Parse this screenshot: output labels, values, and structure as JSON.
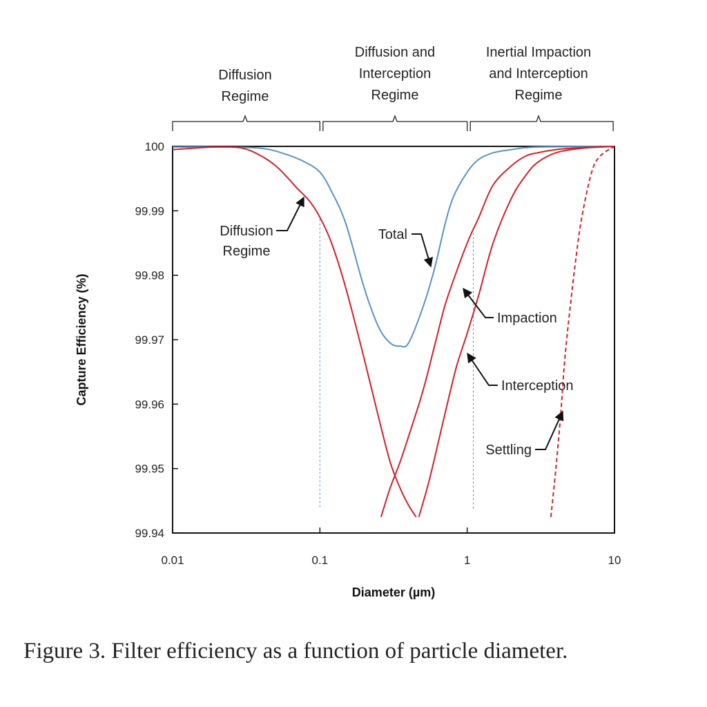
{
  "chart_data": {
    "type": "line",
    "x_scale": "log",
    "xlim": [
      0.01,
      10
    ],
    "ylim": [
      99.94,
      100
    ],
    "xlabel": "Diameter (µm)",
    "ylabel": "Capture Efficiency (%)",
    "x_ticks": [
      "0.01",
      "0.1",
      "1",
      "10"
    ],
    "y_ticks": [
      "99.94",
      "99.95",
      "99.96",
      "99.97",
      "99.98",
      "99.99",
      "100"
    ],
    "grid": false,
    "legend": "none",
    "series": [
      {
        "key": "total",
        "color": "#5b8fc7",
        "style": "solid",
        "points": [
          [
            0.01,
            99.9999
          ],
          [
            0.02,
            99.9999
          ],
          [
            0.04,
            99.9997
          ],
          [
            0.06,
            99.9987
          ],
          [
            0.08,
            99.9975
          ],
          [
            0.1,
            99.996
          ],
          [
            0.12,
            99.993
          ],
          [
            0.15,
            99.988
          ],
          [
            0.2,
            99.978
          ],
          [
            0.25,
            99.972
          ],
          [
            0.3,
            99.9695
          ],
          [
            0.35,
            99.969
          ],
          [
            0.4,
            99.9695
          ],
          [
            0.5,
            99.975
          ],
          [
            0.6,
            99.981
          ],
          [
            0.7,
            99.9875
          ],
          [
            0.8,
            99.992
          ],
          [
            1.0,
            99.996
          ],
          [
            1.2,
            99.998
          ],
          [
            1.5,
            99.999
          ],
          [
            2.0,
            99.9995
          ],
          [
            3.0,
            99.9999
          ],
          [
            10,
            100.0
          ]
        ]
      },
      {
        "key": "diffusion",
        "color": "#d0202a",
        "style": "solid",
        "points": [
          [
            0.01,
            99.9995
          ],
          [
            0.02,
            99.9999
          ],
          [
            0.03,
            99.9997
          ],
          [
            0.04,
            99.9985
          ],
          [
            0.05,
            99.997
          ],
          [
            0.06,
            99.9952
          ],
          [
            0.07,
            99.9935
          ],
          [
            0.085,
            99.9915
          ],
          [
            0.1,
            99.989
          ],
          [
            0.12,
            99.985
          ],
          [
            0.15,
            99.978
          ],
          [
            0.2,
            99.967
          ],
          [
            0.25,
            99.958
          ],
          [
            0.3,
            99.951
          ],
          [
            0.35,
            99.947
          ],
          [
            0.4,
            99.9443
          ],
          [
            0.45,
            99.9425
          ]
        ]
      },
      {
        "key": "impaction",
        "color": "#d0202a",
        "style": "solid",
        "points": [
          [
            0.26,
            99.9425
          ],
          [
            0.3,
            99.947
          ],
          [
            0.35,
            99.951
          ],
          [
            0.4,
            99.955
          ],
          [
            0.5,
            99.962
          ],
          [
            0.6,
            99.969
          ],
          [
            0.7,
            99.975
          ],
          [
            0.8,
            99.979
          ],
          [
            1.0,
            99.985
          ],
          [
            1.2,
            99.989
          ],
          [
            1.5,
            99.994
          ],
          [
            2.0,
            99.997
          ],
          [
            2.5,
            99.9985
          ],
          [
            3.0,
            99.999
          ],
          [
            4.0,
            99.9995
          ],
          [
            6.0,
            99.9998
          ],
          [
            10,
            100.0
          ]
        ]
      },
      {
        "key": "interception",
        "color": "#d0202a",
        "style": "solid",
        "points": [
          [
            0.47,
            99.9425
          ],
          [
            0.55,
            99.948
          ],
          [
            0.65,
            99.955
          ],
          [
            0.75,
            99.961
          ],
          [
            0.85,
            99.966
          ],
          [
            1.0,
            99.971
          ],
          [
            1.2,
            99.977
          ],
          [
            1.5,
            99.985
          ],
          [
            2.0,
            99.992
          ],
          [
            2.5,
            99.9955
          ],
          [
            3.0,
            99.9975
          ],
          [
            4.0,
            99.999
          ],
          [
            6.0,
            99.9997
          ],
          [
            10,
            100.0
          ]
        ]
      },
      {
        "key": "settling",
        "color": "#d0202a",
        "style": "dashed",
        "points": [
          [
            3.7,
            99.9425
          ],
          [
            4.0,
            99.95
          ],
          [
            4.3,
            99.958
          ],
          [
            4.6,
            99.967
          ],
          [
            5.0,
            99.975
          ],
          [
            5.5,
            99.983
          ],
          [
            6.0,
            99.989
          ],
          [
            7.0,
            99.996
          ],
          [
            8.0,
            99.9985
          ],
          [
            10,
            100.0
          ]
        ]
      }
    ],
    "reference_lines": [
      {
        "axis": "x",
        "value": 0.1,
        "from": 99.944,
        "to": 99.989
      },
      {
        "axis": "x",
        "value": 1.1,
        "from": 99.9438,
        "to": 99.9865
      }
    ],
    "regimes": [
      {
        "lines": [
          "Diffusion",
          "Regime"
        ],
        "x_from": 0.01,
        "x_to": 0.1
      },
      {
        "lines": [
          "Diffusion and",
          "Interception",
          "Regime"
        ],
        "x_from": 0.105,
        "x_to": 1.0
      },
      {
        "lines": [
          "Inertial Impaction",
          "and Interception",
          "Regime"
        ],
        "x_from": 1.05,
        "x_to": 9.8
      }
    ],
    "annotations": [
      {
        "key": "diffusion",
        "lines": [
          "Diffusion",
          "Regime"
        ]
      },
      {
        "key": "total",
        "lines": [
          "Total"
        ]
      },
      {
        "key": "impaction",
        "lines": [
          "Impaction"
        ]
      },
      {
        "key": "interception",
        "lines": [
          "Interception"
        ]
      },
      {
        "key": "settling",
        "lines": [
          "Settling"
        ]
      }
    ]
  },
  "caption": "Figure 3.  Filter efficiency as a function of particle diameter."
}
